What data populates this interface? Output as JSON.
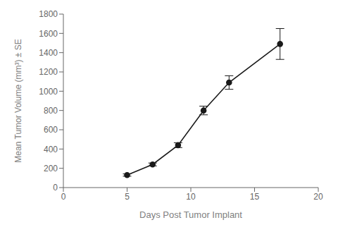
{
  "chart_data": {
    "type": "line",
    "x": [
      5,
      7,
      9,
      11,
      13,
      17
    ],
    "values": [
      130,
      240,
      440,
      800,
      1090,
      1490
    ],
    "error_lower": [
      12,
      15,
      25,
      45,
      70,
      160
    ],
    "error_upper": [
      12,
      15,
      25,
      45,
      70,
      160
    ],
    "xlabel": "Days Post Tumor Implant",
    "ylabel": "Mean Tumor Volume (mm³) ± SE",
    "xlim": [
      0,
      20
    ],
    "ylim": [
      0,
      1800
    ],
    "xticks": [
      0,
      5,
      10,
      15,
      20
    ],
    "yticks": [
      0,
      200,
      400,
      600,
      800,
      1000,
      1200,
      1400,
      1600,
      1800
    ],
    "color": "#1a1a1a",
    "marker": "circle",
    "line_style": "solid",
    "grid": false
  }
}
